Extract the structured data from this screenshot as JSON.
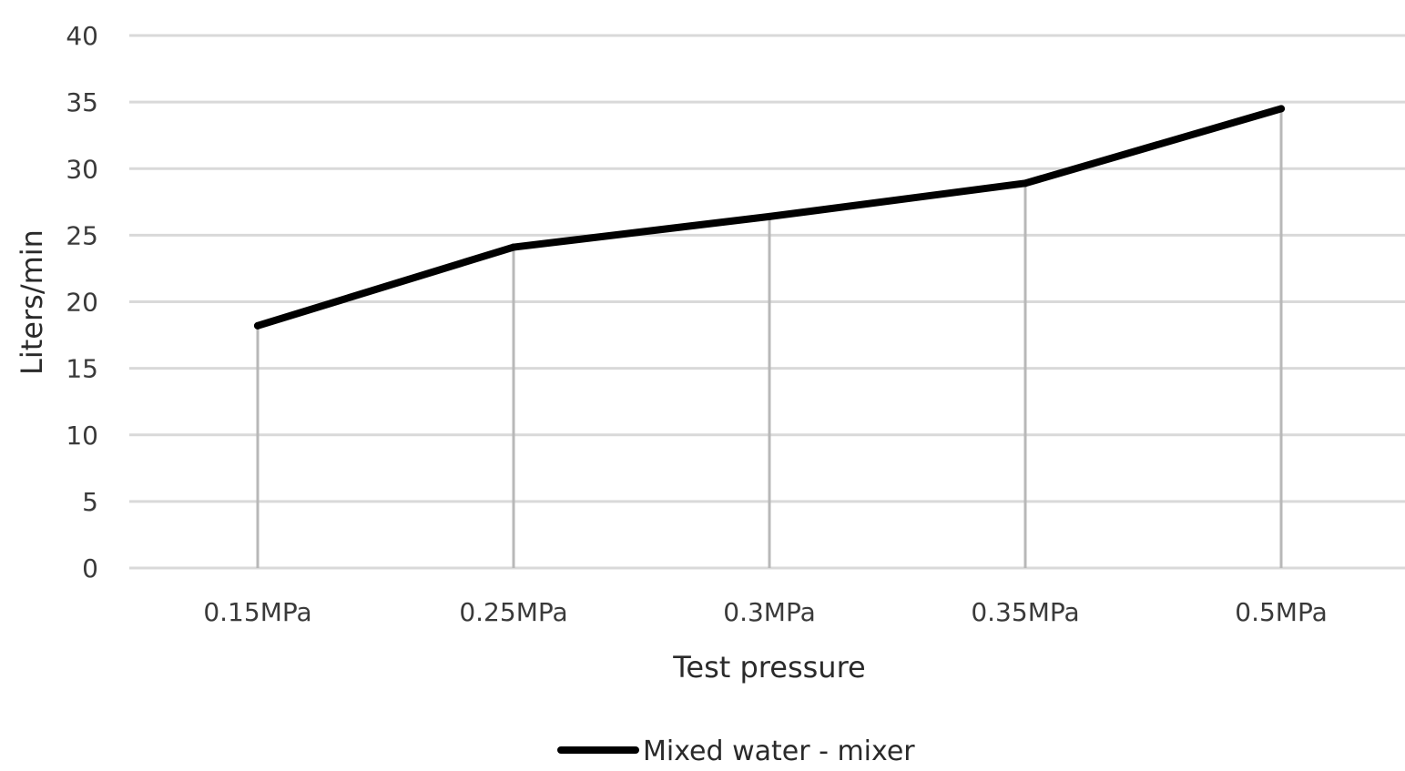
{
  "chart_data": {
    "type": "line",
    "categories": [
      "0.15MPa",
      "0.25MPa",
      "0.3MPa",
      "0.35MPa",
      "0.5MPa"
    ],
    "series": [
      {
        "name": "Mixed water - mixer",
        "values": [
          18.2,
          24.1,
          26.4,
          28.9,
          34.5
        ],
        "color": "#000000"
      }
    ],
    "xlabel": "Test pressure",
    "ylabel": "Liters/min",
    "ylim": [
      0,
      40
    ],
    "yticks": [
      0,
      5,
      10,
      15,
      20,
      25,
      30,
      35,
      40
    ],
    "grid": true,
    "drop_lines": true,
    "legend_position": "bottom"
  }
}
